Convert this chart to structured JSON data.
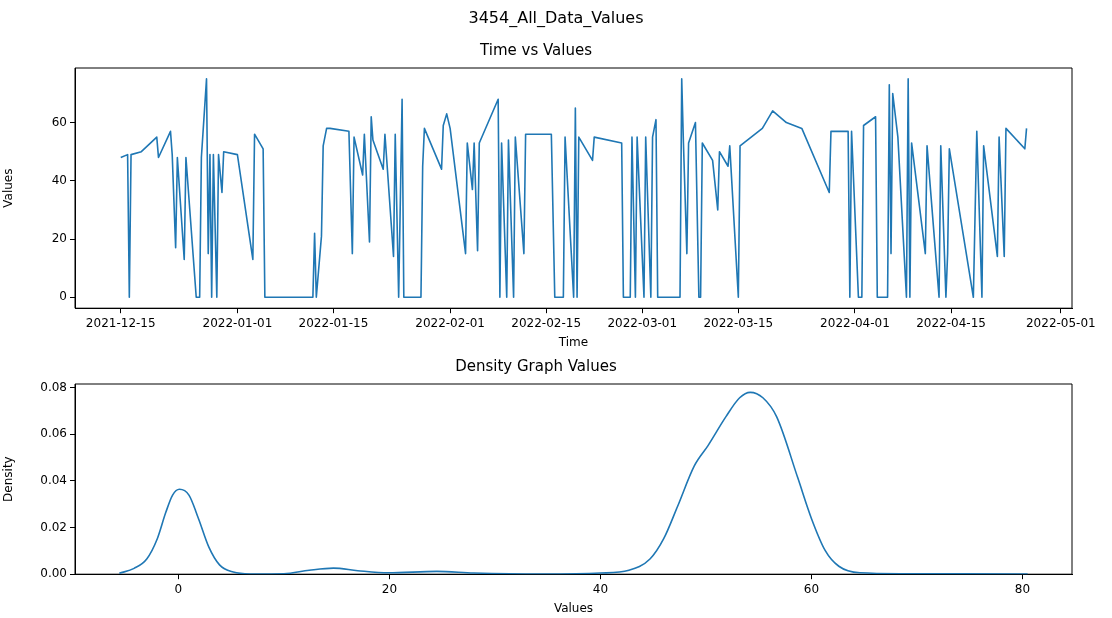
{
  "chart_data": [
    {
      "type": "line",
      "title": "Time vs Values",
      "xlabel": "Time",
      "ylabel": "Values",
      "color": "#1f77b4",
      "annotations": [
        "3454_All_Data_Values"
      ],
      "xlim": [
        "2021-12-08T08:00",
        "2022-05-02T15:00"
      ],
      "xticks": [
        "2021-12-15",
        "2022-01-01",
        "2022-01-15",
        "2022-02-01",
        "2022-02-15",
        "2022-03-01",
        "2022-03-15",
        "2022-04-01",
        "2022-04-15",
        "2022-05-01"
      ],
      "ylim": [
        -3.75,
        78.75
      ],
      "yticks": [
        0,
        20,
        40,
        60
      ],
      "x": [
        "2021-12-15T00:00",
        "2021-12-16T00:00",
        "2021-12-16T06:00",
        "2021-12-16T12:00",
        "2021-12-18T00:00",
        "2021-12-20T06:00",
        "2021-12-20T12:00",
        "2021-12-22T06:00",
        "2021-12-22T12:00",
        "2021-12-23T00:00",
        "2021-12-23T06:00",
        "2021-12-24T06:00",
        "2021-12-24T12:00",
        "2021-12-26T00:00",
        "2021-12-26T12:00",
        "2021-12-26T18:00",
        "2021-12-27T12:00",
        "2021-12-27T18:00",
        "2021-12-28T00:00",
        "2021-12-28T06:00",
        "2021-12-28T12:00",
        "2021-12-29T00:00",
        "2021-12-29T06:00",
        "2021-12-29T18:00",
        "2021-12-30T00:00",
        "2022-01-01T00:00",
        "2022-01-03T06:00",
        "2022-01-03T12:00",
        "2022-01-04T18:00",
        "2022-01-05T00:00",
        "2022-01-12T00:00",
        "2022-01-12T06:00",
        "2022-01-12T12:00",
        "2022-01-13T06:00",
        "2022-01-13T12:00",
        "2022-01-14T00:00",
        "2022-01-14T12:00",
        "2022-01-17T06:00",
        "2022-01-17T18:00",
        "2022-01-18T00:00",
        "2022-01-19T06:00",
        "2022-01-19T12:00",
        "2022-01-20T06:00",
        "2022-01-20T12:00",
        "2022-01-20T18:00",
        "2022-01-22T06:00",
        "2022-01-22T12:00",
        "2022-01-23T18:00",
        "2022-01-24T00:00",
        "2022-01-24T12:00",
        "2022-01-25T00:00",
        "2022-01-25T06:00",
        "2022-01-27T18:00",
        "2022-01-28T00:00",
        "2022-01-28T06:00",
        "2022-01-30T18:00",
        "2022-01-31T00:00",
        "2022-01-31T12:00",
        "2022-02-01T00:00",
        "2022-02-03T06:00",
        "2022-02-03T12:00",
        "2022-02-04T06:00",
        "2022-02-04T12:00",
        "2022-02-05T00:00",
        "2022-02-05T06:00",
        "2022-02-08T00:00",
        "2022-02-08T06:00",
        "2022-02-08T12:00",
        "2022-02-09T06:00",
        "2022-02-09T12:00",
        "2022-02-10T06:00",
        "2022-02-10T12:00",
        "2022-02-11T18:00",
        "2022-02-12T00:00",
        "2022-02-15T18:00",
        "2022-02-16T06:00",
        "2022-02-17T12:00",
        "2022-02-17T18:00",
        "2022-02-19T00:00",
        "2022-02-19T06:00",
        "2022-02-19T12:00",
        "2022-02-19T18:00",
        "2022-02-21T18:00",
        "2022-02-22T00:00",
        "2022-02-26T00:00",
        "2022-02-26T06:00",
        "2022-02-27T06:00",
        "2022-02-27T12:00",
        "2022-02-28T00:00",
        "2022-02-28T06:00",
        "2022-03-01T06:00",
        "2022-03-01T12:00",
        "2022-03-02T06:00",
        "2022-03-02T12:00",
        "2022-03-03T00:00",
        "2022-03-03T06:00",
        "2022-03-06T12:00",
        "2022-03-06T18:00",
        "2022-03-07T00:00",
        "2022-03-07T12:00",
        "2022-03-07T18:00",
        "2022-03-08T18:00",
        "2022-03-09T06:00",
        "2022-03-09T12:00",
        "2022-03-09T18:00",
        "2022-03-11T06:00",
        "2022-03-12T00:00",
        "2022-03-12T06:00",
        "2022-03-13T12:00",
        "2022-03-13T18:00",
        "2022-03-15T00:00",
        "2022-03-15T06:00",
        "2022-03-18T12:00",
        "2022-03-20T00:00",
        "2022-03-22T00:00",
        "2022-03-24T06:00",
        "2022-03-28T06:00",
        "2022-03-28T12:00",
        "2022-03-31T00:00",
        "2022-03-31T06:00",
        "2022-03-31T12:00",
        "2022-04-01T12:00",
        "2022-04-02T00:00",
        "2022-04-02T06:00",
        "2022-04-04T00:00",
        "2022-04-04T06:00",
        "2022-04-05T18:00",
        "2022-04-06T00:00",
        "2022-04-06T06:00",
        "2022-04-06T12:00",
        "2022-04-07T06:00",
        "2022-04-08T12:00",
        "2022-04-08T18:00",
        "2022-04-09T00:00",
        "2022-04-09T06:00",
        "2022-04-11T06:00",
        "2022-04-11T12:00",
        "2022-04-13T06:00",
        "2022-04-13T12:00",
        "2022-04-14T06:00",
        "2022-04-14T12:00",
        "2022-04-14T18:00",
        "2022-04-18T06:00",
        "2022-04-18T18:00",
        "2022-04-19T12:00",
        "2022-04-19T18:00",
        "2022-04-21T18:00",
        "2022-04-22T00:00",
        "2022-04-22T18:00",
        "2022-04-23T00:00",
        "2022-04-25T18:00",
        "2022-04-26T00:00"
      ],
      "values": [
        48,
        49,
        0,
        49,
        50,
        55,
        48,
        57,
        49,
        17,
        48,
        13,
        48,
        0,
        0,
        48,
        75,
        15,
        49,
        0,
        49,
        0,
        49,
        36,
        50,
        49,
        13,
        56,
        51,
        0,
        0,
        22,
        0,
        21,
        52,
        58,
        58,
        57,
        15,
        55,
        42,
        56,
        19,
        62,
        54,
        44,
        56,
        14,
        56,
        0,
        68,
        0,
        0,
        45,
        58,
        44,
        59,
        63,
        58,
        15,
        53,
        37,
        53,
        16,
        53,
        68,
        0,
        53,
        0,
        54,
        0,
        55,
        15,
        56,
        56,
        0,
        0,
        55,
        0,
        65,
        0,
        55,
        47,
        55,
        53,
        0,
        0,
        55,
        0,
        55,
        0,
        55,
        0,
        55,
        61,
        0,
        0,
        75,
        53,
        15,
        53,
        60,
        0,
        0,
        53,
        47,
        30,
        50,
        45,
        52,
        0,
        52,
        58,
        64,
        60,
        58,
        36,
        57,
        57,
        0,
        57,
        0,
        0,
        59,
        62,
        0,
        0,
        73,
        15,
        70,
        55,
        0,
        75,
        0,
        53,
        15,
        52,
        0,
        52,
        0,
        15,
        51,
        0,
        57,
        0,
        52,
        14,
        55,
        14,
        58,
        51,
        58
      ]
    },
    {
      "type": "line",
      "title": "Density Graph Values",
      "xlabel": "Values",
      "ylabel": "Density",
      "color": "#1f77b4",
      "xlim": [
        -9.8,
        84.7
      ],
      "xticks": [
        0,
        20,
        40,
        60,
        80
      ],
      "ylim": [
        0,
        0.0815
      ],
      "yticks": [
        {
          "value": 0,
          "label": "0.00"
        },
        {
          "value": 0.02,
          "label": "0.02"
        },
        {
          "value": 0.04,
          "label": "0.04"
        },
        {
          "value": 0.06,
          "label": "0.06"
        },
        {
          "value": 0.08,
          "label": "0.08"
        }
      ],
      "x": [
        -5.6,
        -4.2,
        -3.0,
        -2.0,
        -1.2,
        -0.55,
        0.1,
        1.0,
        1.9,
        2.9,
        3.9,
        5.2,
        6.8,
        10,
        12.4,
        14.7,
        17,
        19.9,
        24.5,
        28,
        34.6,
        40,
        42.7,
        44.7,
        46,
        47.3,
        48.9,
        50.2,
        51.9,
        53.2,
        54.2,
        55.4,
        56.7,
        58.7,
        60,
        61.3,
        62.6,
        64.6,
        68.9,
        80.5
      ],
      "values": [
        0.0004,
        0.0025,
        0.0065,
        0.0152,
        0.0264,
        0.0339,
        0.0364,
        0.0339,
        0.0239,
        0.0115,
        0.004,
        0.0009,
        0.0001,
        0.0002,
        0.0017,
        0.0026,
        0.0015,
        0.0006,
        0.0012,
        0.0005,
        0.0001,
        0.0005,
        0.0017,
        0.0065,
        0.0152,
        0.0289,
        0.0464,
        0.0551,
        0.0675,
        0.0756,
        0.0779,
        0.0756,
        0.0675,
        0.0414,
        0.0239,
        0.0102,
        0.0034,
        0.0006,
        0.0002,
        0.0001
      ]
    }
  ]
}
